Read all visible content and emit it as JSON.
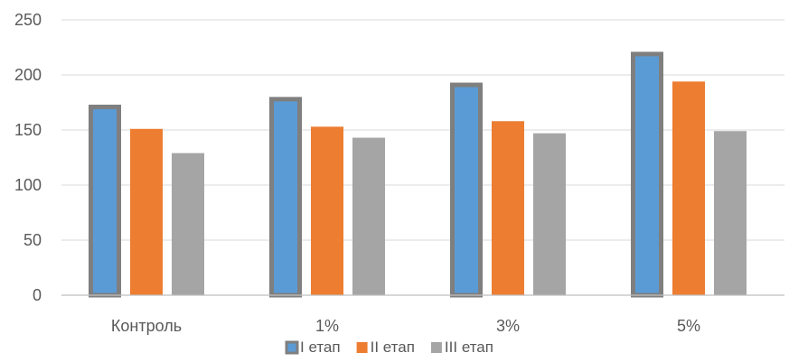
{
  "chart_data": {
    "type": "bar",
    "categories": [
      "Контроль",
      "1%",
      "3%",
      "5%"
    ],
    "series": [
      {
        "name": "I етап",
        "values": [
          173,
          180,
          193,
          221
        ],
        "color": "#5b9bd5",
        "outline": "#7f7f7f"
      },
      {
        "name": "II етап",
        "values": [
          151,
          153,
          158,
          194
        ],
        "color": "#ed7d31"
      },
      {
        "name": "III етап",
        "values": [
          129,
          143,
          147,
          149
        ],
        "color": "#a5a5a5"
      }
    ],
    "yticks": [
      0,
      50,
      100,
      150,
      200,
      250
    ],
    "ylim": [
      0,
      250
    ],
    "grid": true,
    "legend_position": "bottom"
  }
}
